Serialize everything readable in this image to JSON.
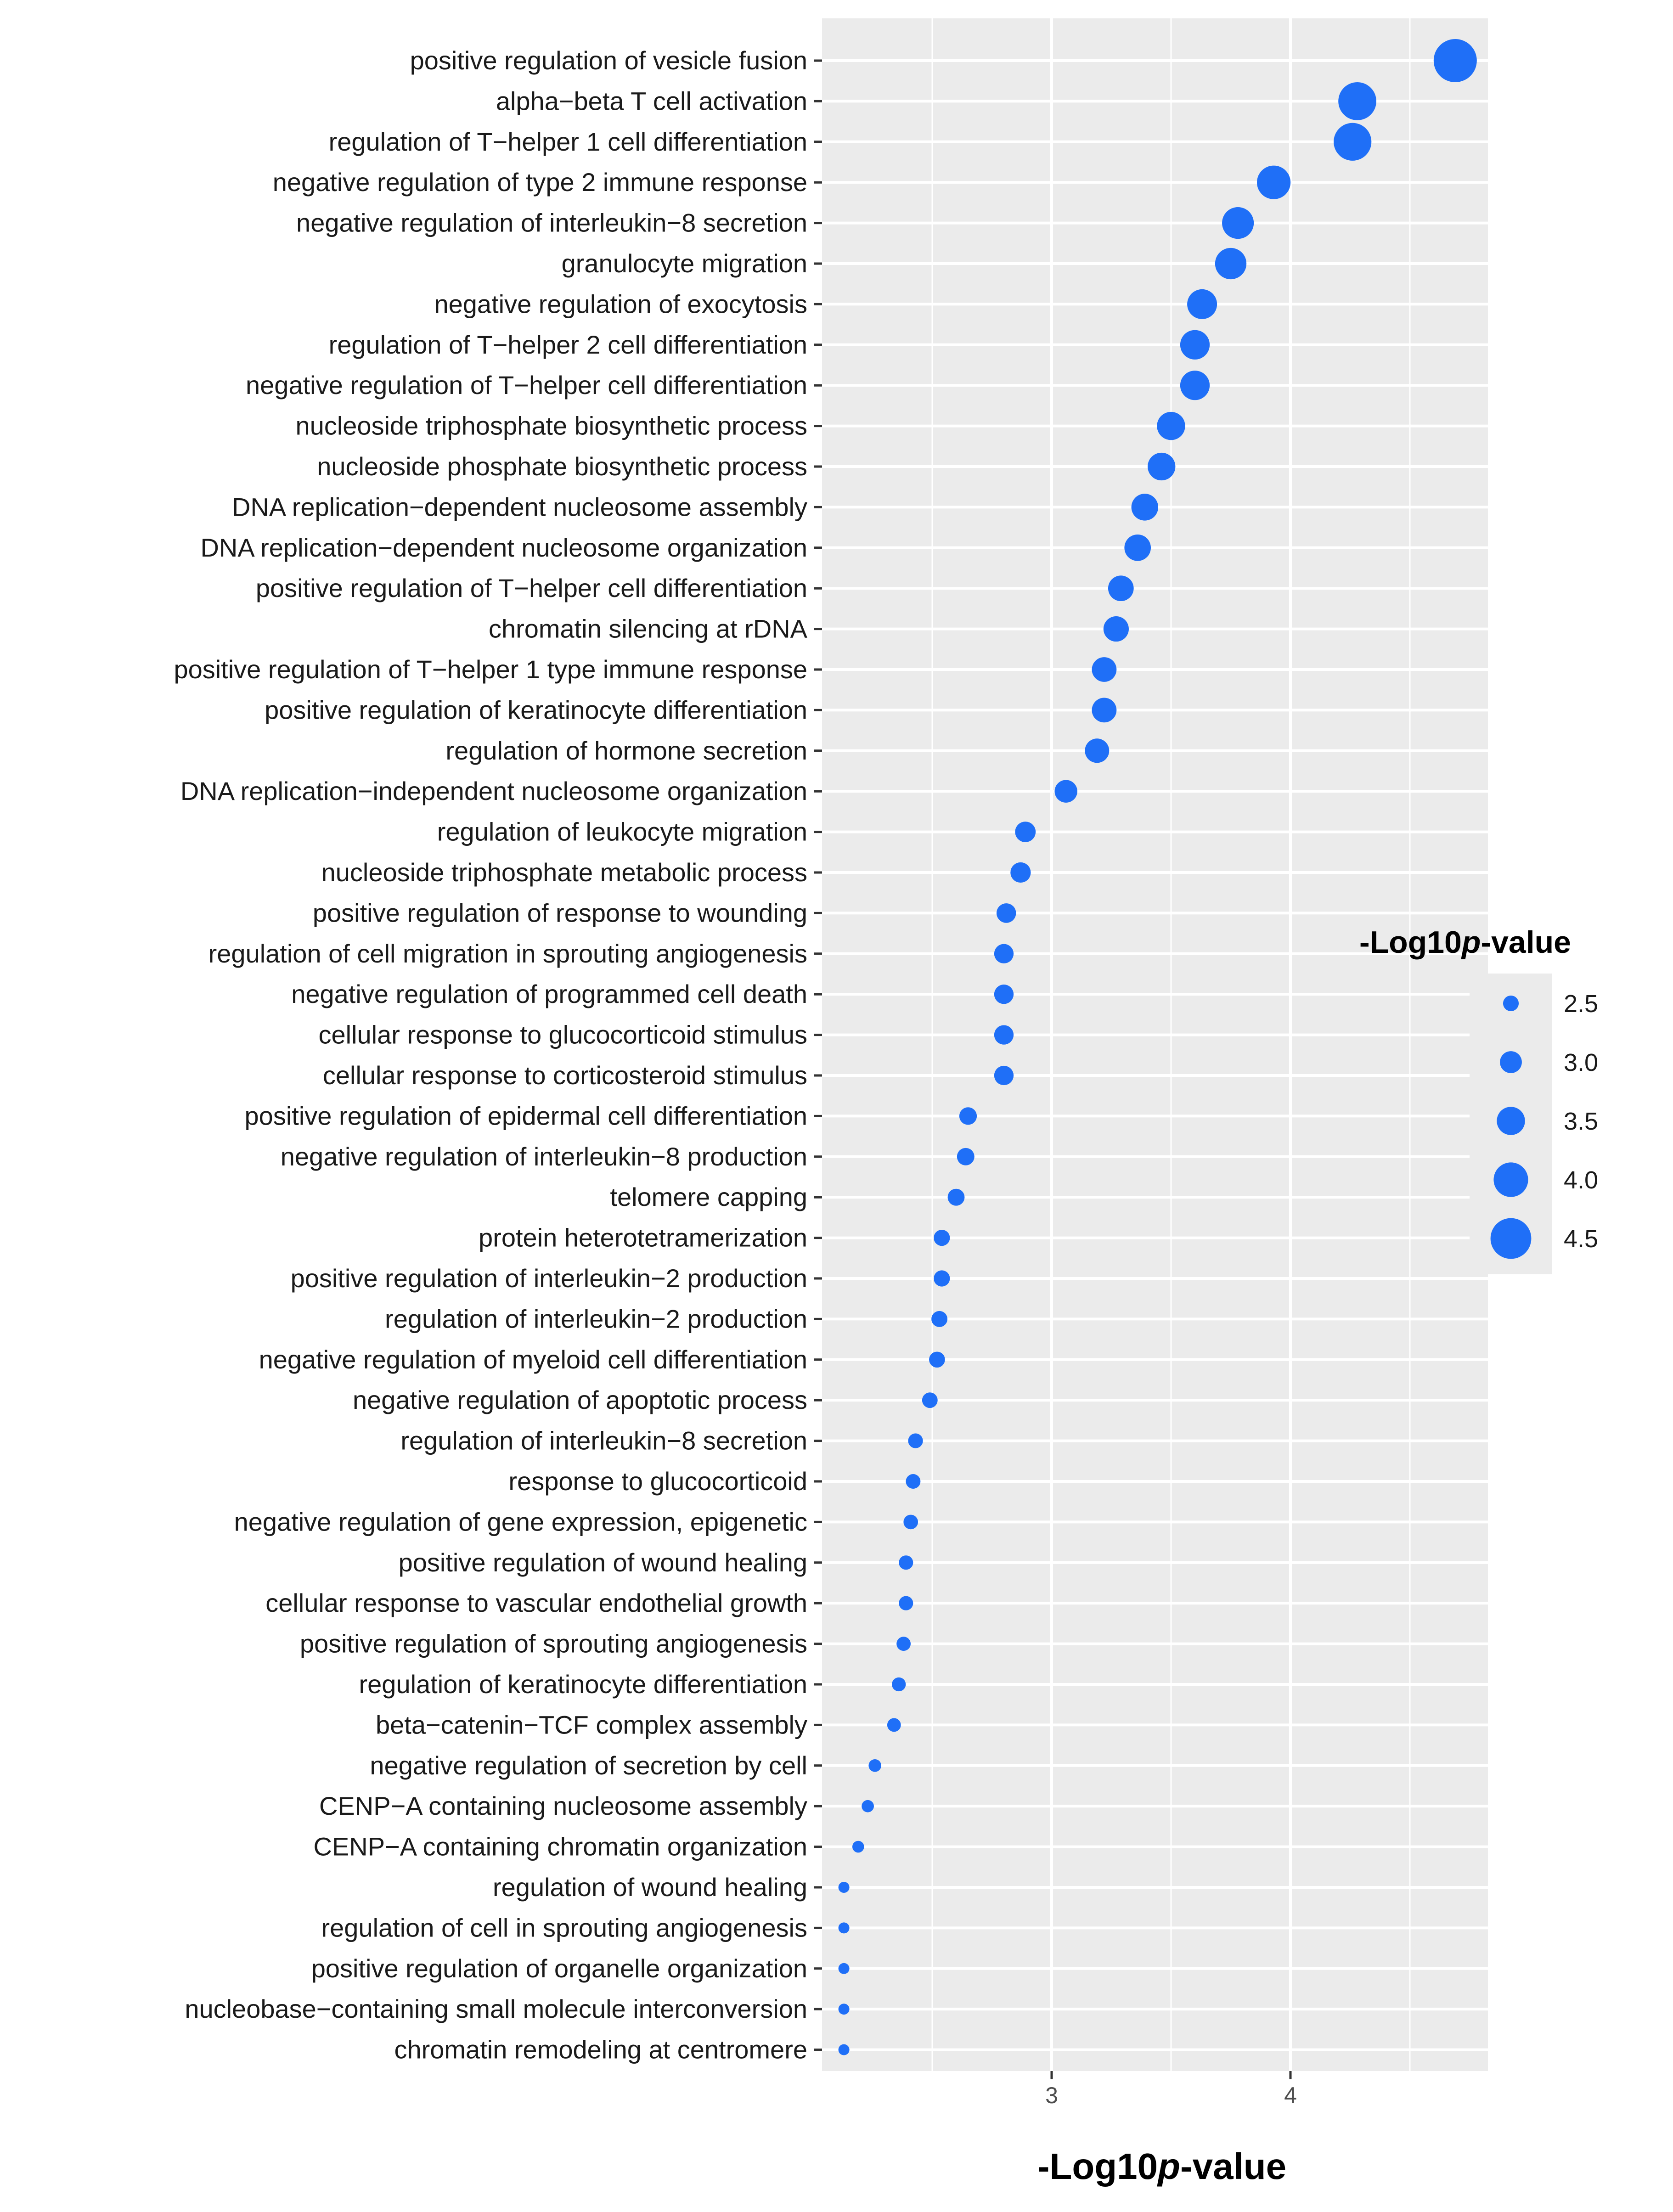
{
  "chart_data": {
    "type": "scatter",
    "subtype": "dot-plot",
    "x_label": "-Log10p-value",
    "x_label_parts": {
      "prefix": "-Log10",
      "italic": "p",
      "suffix": "-value"
    },
    "x_ticks": [
      3,
      4
    ],
    "x_range": [
      2.05,
      4.85
    ],
    "point_color": "#1f6ff7",
    "panel_color": "#ebebeb",
    "grid_color": "#ffffff",
    "size_legend": {
      "title": "-Log10p-value",
      "title_parts": {
        "prefix": "-Log10",
        "italic": "p",
        "suffix": "-value"
      },
      "values": [
        2.5,
        3.0,
        3.5,
        4.0,
        4.5
      ],
      "labels": [
        "2.5",
        "3.0",
        "3.5",
        "4.0",
        "4.5"
      ],
      "placement": "right"
    },
    "categories": [
      "positive regulation of vesicle fusion",
      "alpha−beta T cell activation",
      "regulation of T−helper 1 cell differentiation",
      "negative regulation of type 2 immune response",
      "negative regulation of interleukin−8 secretion",
      "granulocyte migration",
      "negative regulation of exocytosis",
      "regulation of T−helper 2 cell differentiation",
      "negative regulation of T−helper cell differentiation",
      "nucleoside triphosphate biosynthetic process",
      "nucleoside phosphate biosynthetic process",
      "DNA replication−dependent nucleosome assembly",
      "DNA replication−dependent nucleosome organization",
      "positive regulation of T−helper cell differentiation",
      "chromatin silencing at rDNA",
      "positive regulation of T−helper 1 type immune response",
      "positive regulation of keratinocyte differentiation",
      "regulation of hormone secretion",
      "DNA replication−independent nucleosome organization",
      "regulation of leukocyte migration",
      "nucleoside triphosphate metabolic process",
      "positive regulation of response to wounding",
      "regulation of cell migration in sprouting angiogenesis",
      "negative regulation of programmed cell death",
      "cellular response to glucocorticoid stimulus",
      "cellular response to corticosteroid stimulus",
      "positive regulation of epidermal cell differentiation",
      "negative regulation of interleukin−8 production",
      "telomere capping",
      "protein heterotetramerization",
      "positive regulation of interleukin−2 production",
      "regulation of interleukin−2 production",
      "negative regulation of myeloid cell differentiation",
      "negative regulation of apoptotic process",
      "regulation of interleukin−8 secretion",
      "response to glucocorticoid",
      "negative regulation of gene expression, epigenetic",
      "positive regulation of wound healing",
      "cellular response to vascular endothelial growth",
      "positive regulation of sprouting angiogenesis",
      "regulation of keratinocyte differentiation",
      "beta−catenin−TCF complex assembly",
      "negative regulation of secretion by cell",
      "CENP−A containing nucleosome assembly",
      "CENP−A containing chromatin organization",
      "regulation of wound healing",
      "regulation of cell in sprouting angiogenesis",
      "positive regulation of organelle organization",
      "nucleobase−containing small molecule interconversion",
      "chromatin remodeling at centromere"
    ],
    "values": [
      4.69,
      4.28,
      4.26,
      3.93,
      3.78,
      3.75,
      3.63,
      3.6,
      3.6,
      3.5,
      3.46,
      3.39,
      3.36,
      3.29,
      3.27,
      3.22,
      3.22,
      3.19,
      3.06,
      2.89,
      2.87,
      2.81,
      2.8,
      2.8,
      2.8,
      2.8,
      2.65,
      2.64,
      2.6,
      2.54,
      2.54,
      2.53,
      2.52,
      2.49,
      2.43,
      2.42,
      2.41,
      2.39,
      2.39,
      2.38,
      2.36,
      2.34,
      2.26,
      2.23,
      2.19,
      2.13,
      2.13,
      2.13,
      2.13,
      2.13
    ]
  }
}
